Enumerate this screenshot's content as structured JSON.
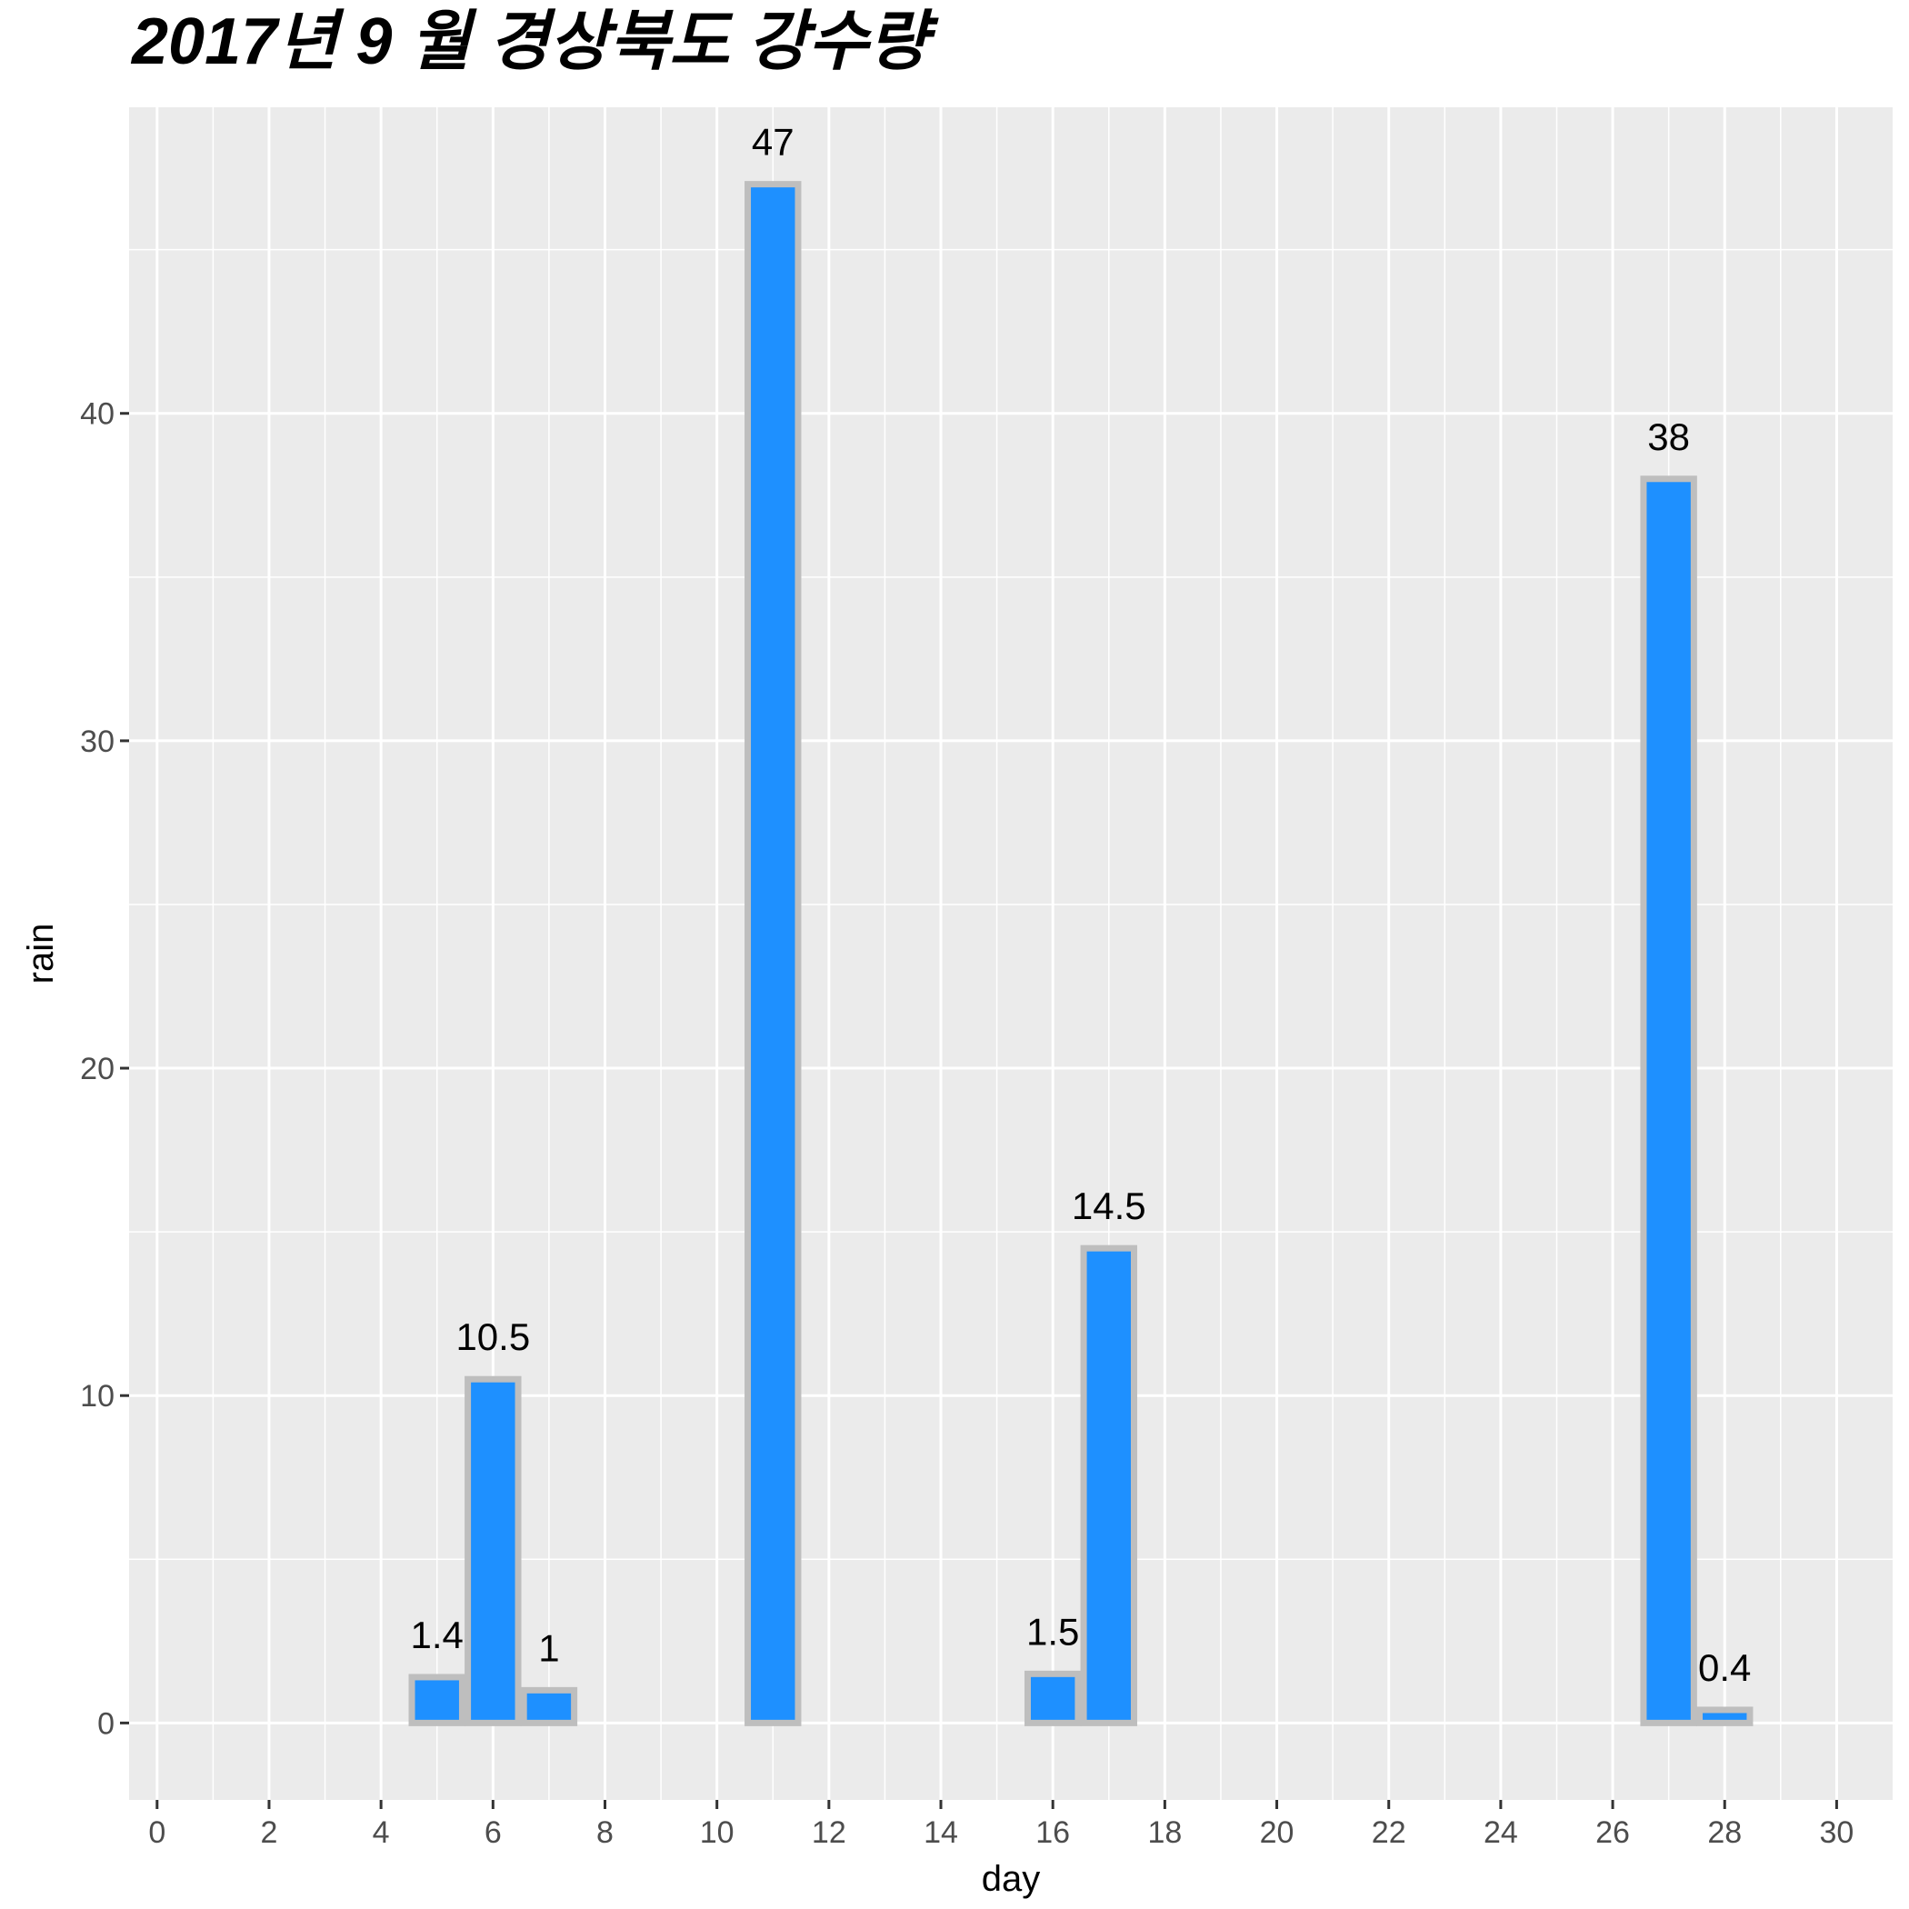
{
  "chart_data": {
    "type": "bar",
    "title": "2017년 9 월 경상북도 강수량",
    "xlabel": "day",
    "ylabel": "rain",
    "x": [
      5,
      6,
      7,
      11,
      16,
      17,
      27,
      28
    ],
    "values": [
      1.4,
      10.5,
      1,
      47,
      1.5,
      14.5,
      38,
      0.4
    ],
    "data_labels": [
      "1.4",
      "10.5",
      "1",
      "47",
      "1.5",
      "14.5",
      "38",
      "0.4"
    ],
    "xlim": [
      -0.5,
      31
    ],
    "ylim": [
      -2.35,
      49.35
    ],
    "x_ticks": [
      0,
      2,
      4,
      6,
      8,
      10,
      12,
      14,
      16,
      18,
      20,
      22,
      24,
      26,
      28,
      30
    ],
    "y_ticks": [
      0,
      10,
      20,
      30,
      40
    ],
    "grid": true,
    "colors": {
      "bar_fill": "#1E90FF",
      "bar_outline": "#BEBEBE",
      "panel_background": "#EBEBEB",
      "grid": "#FFFFFF"
    }
  }
}
